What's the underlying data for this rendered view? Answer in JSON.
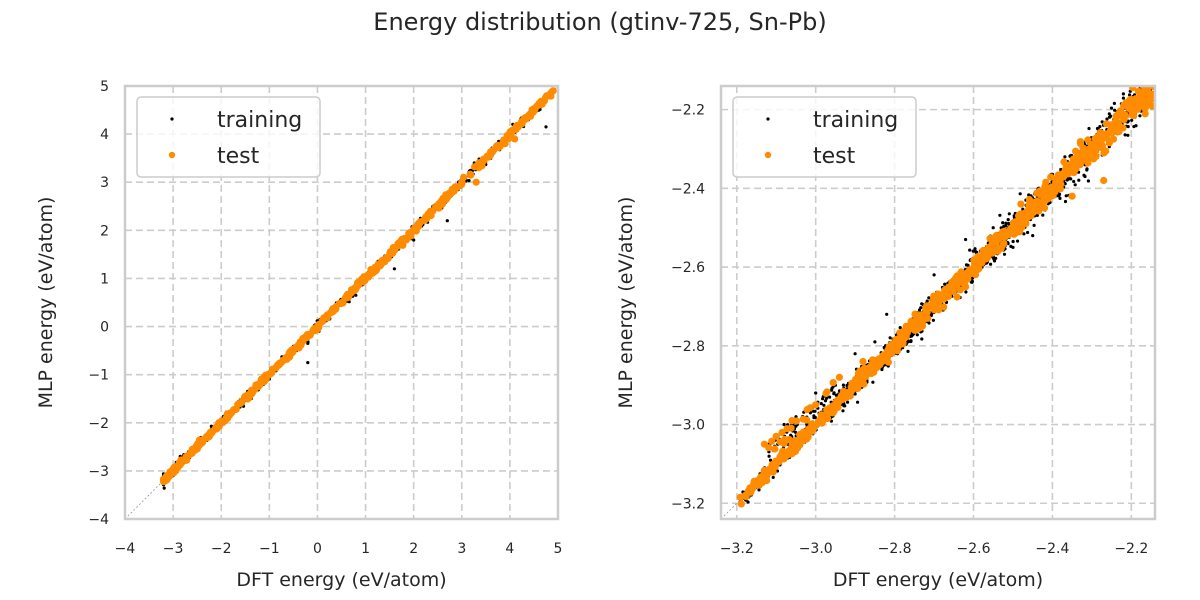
{
  "figure": {
    "title": "Energy distribution (gtinv-725, Sn-Pb)"
  },
  "colors": {
    "training": "#000000",
    "test": "#ff8c00",
    "grid": "#cccccc",
    "spine": "#cccccc",
    "diagonal": "#999999"
  },
  "chart_data": [
    {
      "type": "scatter",
      "title": "",
      "xlabel": "DFT energy (eV/atom)",
      "ylabel": "MLP energy (eV/atom)",
      "xlim": [
        -4,
        5
      ],
      "ylim": [
        -4,
        5
      ],
      "xticks": [
        -4,
        -3,
        -2,
        -1,
        0,
        1,
        2,
        3,
        4,
        5
      ],
      "yticks": [
        -4,
        -3,
        -2,
        -1,
        0,
        1,
        2,
        3,
        4,
        5
      ],
      "xticklabels": [
        "−4",
        "−3",
        "−2",
        "−1",
        "0",
        "1",
        "2",
        "3",
        "4",
        "5"
      ],
      "yticklabels": [
        "−4",
        "−3",
        "−2",
        "−1",
        "0",
        "1",
        "2",
        "3",
        "4",
        "5"
      ],
      "grid": true,
      "diagonal": "y = x reference line",
      "legend": {
        "position": "top-left",
        "entries": [
          "training",
          "test"
        ]
      },
      "series": [
        {
          "name": "training",
          "description": "dense points along y=x from about -3.2 to 4.9",
          "x": [
            -3.2,
            -3.0,
            -2.6,
            -2.2,
            -1.8,
            -1.4,
            -1.0,
            -0.6,
            -0.4,
            -0.2,
            -0.2,
            0.0,
            0.3,
            0.6,
            0.9,
            1.2,
            1.5,
            1.8,
            2.2,
            2.4,
            2.7,
            3.0,
            3.4,
            3.5,
            3.8,
            4.1,
            4.4,
            4.6,
            4.75,
            4.9,
            2.0,
            1.6,
            2.7,
            0.5
          ],
          "y": [
            -3.2,
            -3.0,
            -2.6,
            -2.2,
            -1.8,
            -1.4,
            -1.0,
            -0.6,
            -0.45,
            -0.35,
            -0.75,
            0.0,
            0.3,
            0.6,
            0.9,
            1.2,
            1.5,
            1.8,
            2.2,
            2.5,
            2.7,
            3.0,
            3.4,
            3.5,
            3.8,
            4.1,
            4.4,
            4.5,
            4.15,
            4.9,
            1.8,
            1.2,
            2.2,
            0.55
          ]
        },
        {
          "name": "test",
          "description": "points along y=x, mostly overlaying training",
          "x": [
            -3.15,
            -3.0,
            -2.8,
            -2.5,
            -2.2,
            -1.9,
            -1.6,
            -1.3,
            -1.0,
            -0.8,
            -0.6,
            -0.5,
            -0.3,
            0.0,
            0.8,
            1.0,
            1.2,
            1.4,
            1.9,
            2.2,
            2.5,
            2.6,
            3.0,
            3.3,
            3.4,
            3.6,
            3.9,
            4.1,
            4.3,
            4.6,
            4.8,
            4.9
          ],
          "y": [
            -3.2,
            -3.0,
            -2.8,
            -2.5,
            -2.2,
            -1.9,
            -1.6,
            -1.3,
            -1.0,
            -0.8,
            -0.6,
            -0.5,
            -0.3,
            0.0,
            0.8,
            1.0,
            1.15,
            1.35,
            1.9,
            2.2,
            2.5,
            2.55,
            3.0,
            3.0,
            3.35,
            3.6,
            3.8,
            3.9,
            4.3,
            4.6,
            4.8,
            4.9
          ]
        }
      ]
    },
    {
      "type": "scatter",
      "title": "",
      "xlabel": "DFT energy (eV/atom)",
      "ylabel": "MLP energy (eV/atom)",
      "xlim": [
        -3.24,
        -2.14
      ],
      "ylim": [
        -3.24,
        -2.14
      ],
      "xticks": [
        -3.2,
        -3.0,
        -2.8,
        -2.6,
        -2.4,
        -2.2
      ],
      "yticks": [
        -3.2,
        -3.0,
        -2.8,
        -2.6,
        -2.4,
        -2.2
      ],
      "xticklabels": [
        "−3.2",
        "−3.0",
        "−2.8",
        "−2.6",
        "−2.4",
        "−2.2"
      ],
      "yticklabels": [
        "−3.2",
        "−3.0",
        "−2.8",
        "−2.6",
        "−2.4",
        "−2.2"
      ],
      "grid": true,
      "diagonal": "y = x reference line",
      "legend": {
        "position": "top-left",
        "entries": [
          "training",
          "test"
        ]
      },
      "series": [
        {
          "name": "training",
          "description": "dense band along y=x from about -3.19 to -2.14 with spread ~±0.05",
          "band": {
            "x_start": -3.19,
            "x_end": -2.14,
            "spread": 0.045,
            "count": 1400
          },
          "outliers_x": [
            -3.12,
            -3.08,
            -3.05,
            -3.0,
            -2.95,
            -2.9,
            -2.85,
            -2.82,
            -2.75,
            -2.7,
            -2.62,
            -2.55,
            -2.5,
            -2.45,
            -2.38,
            -2.3,
            -2.22,
            -2.18
          ],
          "outliers_y": [
            -3.05,
            -3.0,
            -2.98,
            -2.92,
            -2.9,
            -2.82,
            -2.79,
            -2.72,
            -2.74,
            -2.62,
            -2.53,
            -2.5,
            -2.55,
            -2.52,
            -2.38,
            -2.28,
            -2.16,
            -2.2
          ]
        },
        {
          "name": "test",
          "description": "band along y=x overlaying training",
          "band": {
            "x_start": -3.19,
            "x_end": -2.14,
            "spread": 0.03,
            "count": 700
          },
          "outliers_x": [
            -3.13,
            -3.1,
            -3.06,
            -3.0,
            -2.94,
            -2.88,
            -2.62,
            -2.55,
            -2.48,
            -2.42,
            -2.35,
            -2.27,
            -2.25,
            -2.2
          ],
          "outliers_y": [
            -3.05,
            -3.03,
            -2.99,
            -2.95,
            -2.88,
            -2.84,
            -2.65,
            -2.53,
            -2.44,
            -2.45,
            -2.42,
            -2.38,
            -2.26,
            -2.19
          ]
        }
      ]
    }
  ]
}
